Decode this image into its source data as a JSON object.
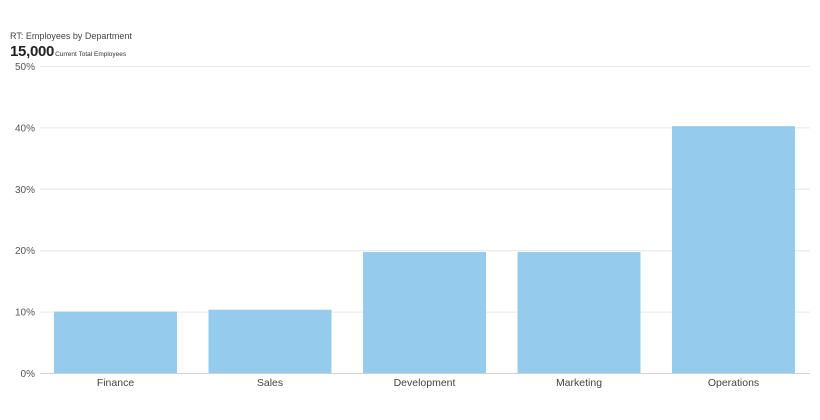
{
  "chart_title": "RT: Employees by Department",
  "kpi": {
    "value": "15,000",
    "label": "Current Total Employees"
  },
  "colors": {
    "bar": "#95cbec",
    "grid": "#e6e6e6",
    "axis": "#d0d0d0"
  },
  "chart_data": {
    "type": "bar",
    "title": "RT: Employees by Department",
    "xlabel": "",
    "ylabel": "",
    "categories": [
      "Finance",
      "Sales",
      "Development",
      "Marketing",
      "Operations"
    ],
    "values": [
      10,
      10.3,
      19.7,
      19.7,
      40.2
    ],
    "ylim": [
      0,
      50
    ],
    "yticks": [
      0,
      10,
      20,
      30,
      40,
      50
    ],
    "ytick_labels": [
      "0%",
      "10%",
      "20%",
      "30%",
      "40%",
      "50%"
    ],
    "grid": true,
    "legend": "none"
  }
}
